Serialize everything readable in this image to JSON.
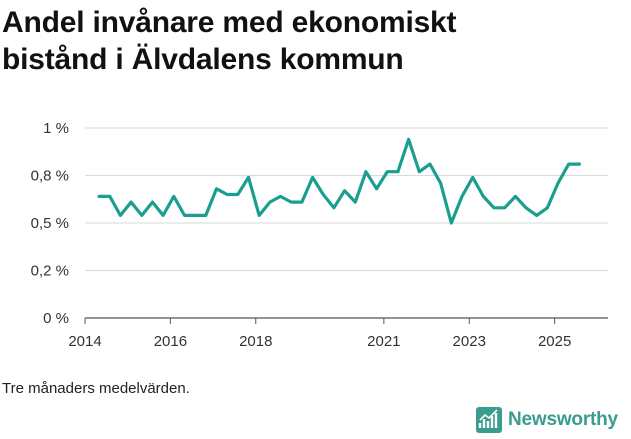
{
  "title": {
    "line1": "Andel invånare med ekonomiskt",
    "line2": "bistånd i Älvdalens kommun"
  },
  "footnote": "Tre månaders medelvärden.",
  "brand": {
    "name": "Newsworthy",
    "icon": "bar-chart-logo-icon"
  },
  "colors": {
    "line": "#1a9e8f",
    "grid": "#d9d9d9",
    "brand": "#3a9b8f"
  },
  "chart_data": {
    "type": "line",
    "title": "Andel invånare med ekonomiskt bistånd i Älvdalens kommun",
    "xlabel": "",
    "ylabel": "",
    "ylim": [
      0,
      1.0
    ],
    "xlim": [
      2014.0,
      2026.25
    ],
    "y_ticks": [
      {
        "value": 0,
        "label": "0 %"
      },
      {
        "value": 0.25,
        "label": "0,2 %"
      },
      {
        "value": 0.5,
        "label": "0,5 %"
      },
      {
        "value": 0.75,
        "label": "0,8 %"
      },
      {
        "value": 1.0,
        "label": "1 %"
      }
    ],
    "x_ticks": [
      {
        "value": 2014,
        "label": "2014"
      },
      {
        "value": 2016,
        "label": "2016"
      },
      {
        "value": 2018,
        "label": "2018"
      },
      {
        "value": 2021,
        "label": "2021"
      },
      {
        "value": 2023,
        "label": "2023"
      },
      {
        "value": 2025,
        "label": "2025"
      }
    ],
    "series": [
      {
        "name": "Andel invånare med ekonomiskt bistånd",
        "points": [
          [
            2014.33,
            0.64
          ],
          [
            2014.58,
            0.64
          ],
          [
            2014.83,
            0.54
          ],
          [
            2015.08,
            0.61
          ],
          [
            2015.33,
            0.54
          ],
          [
            2015.58,
            0.61
          ],
          [
            2015.83,
            0.54
          ],
          [
            2016.08,
            0.64
          ],
          [
            2016.33,
            0.54
          ],
          [
            2016.58,
            0.54
          ],
          [
            2016.83,
            0.54
          ],
          [
            2017.08,
            0.68
          ],
          [
            2017.33,
            0.65
          ],
          [
            2017.58,
            0.65
          ],
          [
            2017.83,
            0.74
          ],
          [
            2018.08,
            0.54
          ],
          [
            2018.33,
            0.61
          ],
          [
            2018.58,
            0.64
          ],
          [
            2018.83,
            0.61
          ],
          [
            2019.08,
            0.61
          ],
          [
            2019.33,
            0.74
          ],
          [
            2019.58,
            0.65
          ],
          [
            2019.83,
            0.58
          ],
          [
            2020.08,
            0.67
          ],
          [
            2020.33,
            0.61
          ],
          [
            2020.58,
            0.77
          ],
          [
            2020.83,
            0.68
          ],
          [
            2021.08,
            0.77
          ],
          [
            2021.33,
            0.77
          ],
          [
            2021.58,
            0.94
          ],
          [
            2021.83,
            0.77
          ],
          [
            2022.08,
            0.81
          ],
          [
            2022.33,
            0.71
          ],
          [
            2022.58,
            0.5
          ],
          [
            2022.83,
            0.64
          ],
          [
            2023.08,
            0.74
          ],
          [
            2023.33,
            0.64
          ],
          [
            2023.58,
            0.58
          ],
          [
            2023.83,
            0.58
          ],
          [
            2024.08,
            0.64
          ],
          [
            2024.33,
            0.58
          ],
          [
            2024.58,
            0.54
          ],
          [
            2024.83,
            0.58
          ],
          [
            2025.08,
            0.71
          ],
          [
            2025.33,
            0.81
          ],
          [
            2025.58,
            0.81
          ]
        ]
      }
    ],
    "grid": true,
    "legend": "none"
  }
}
